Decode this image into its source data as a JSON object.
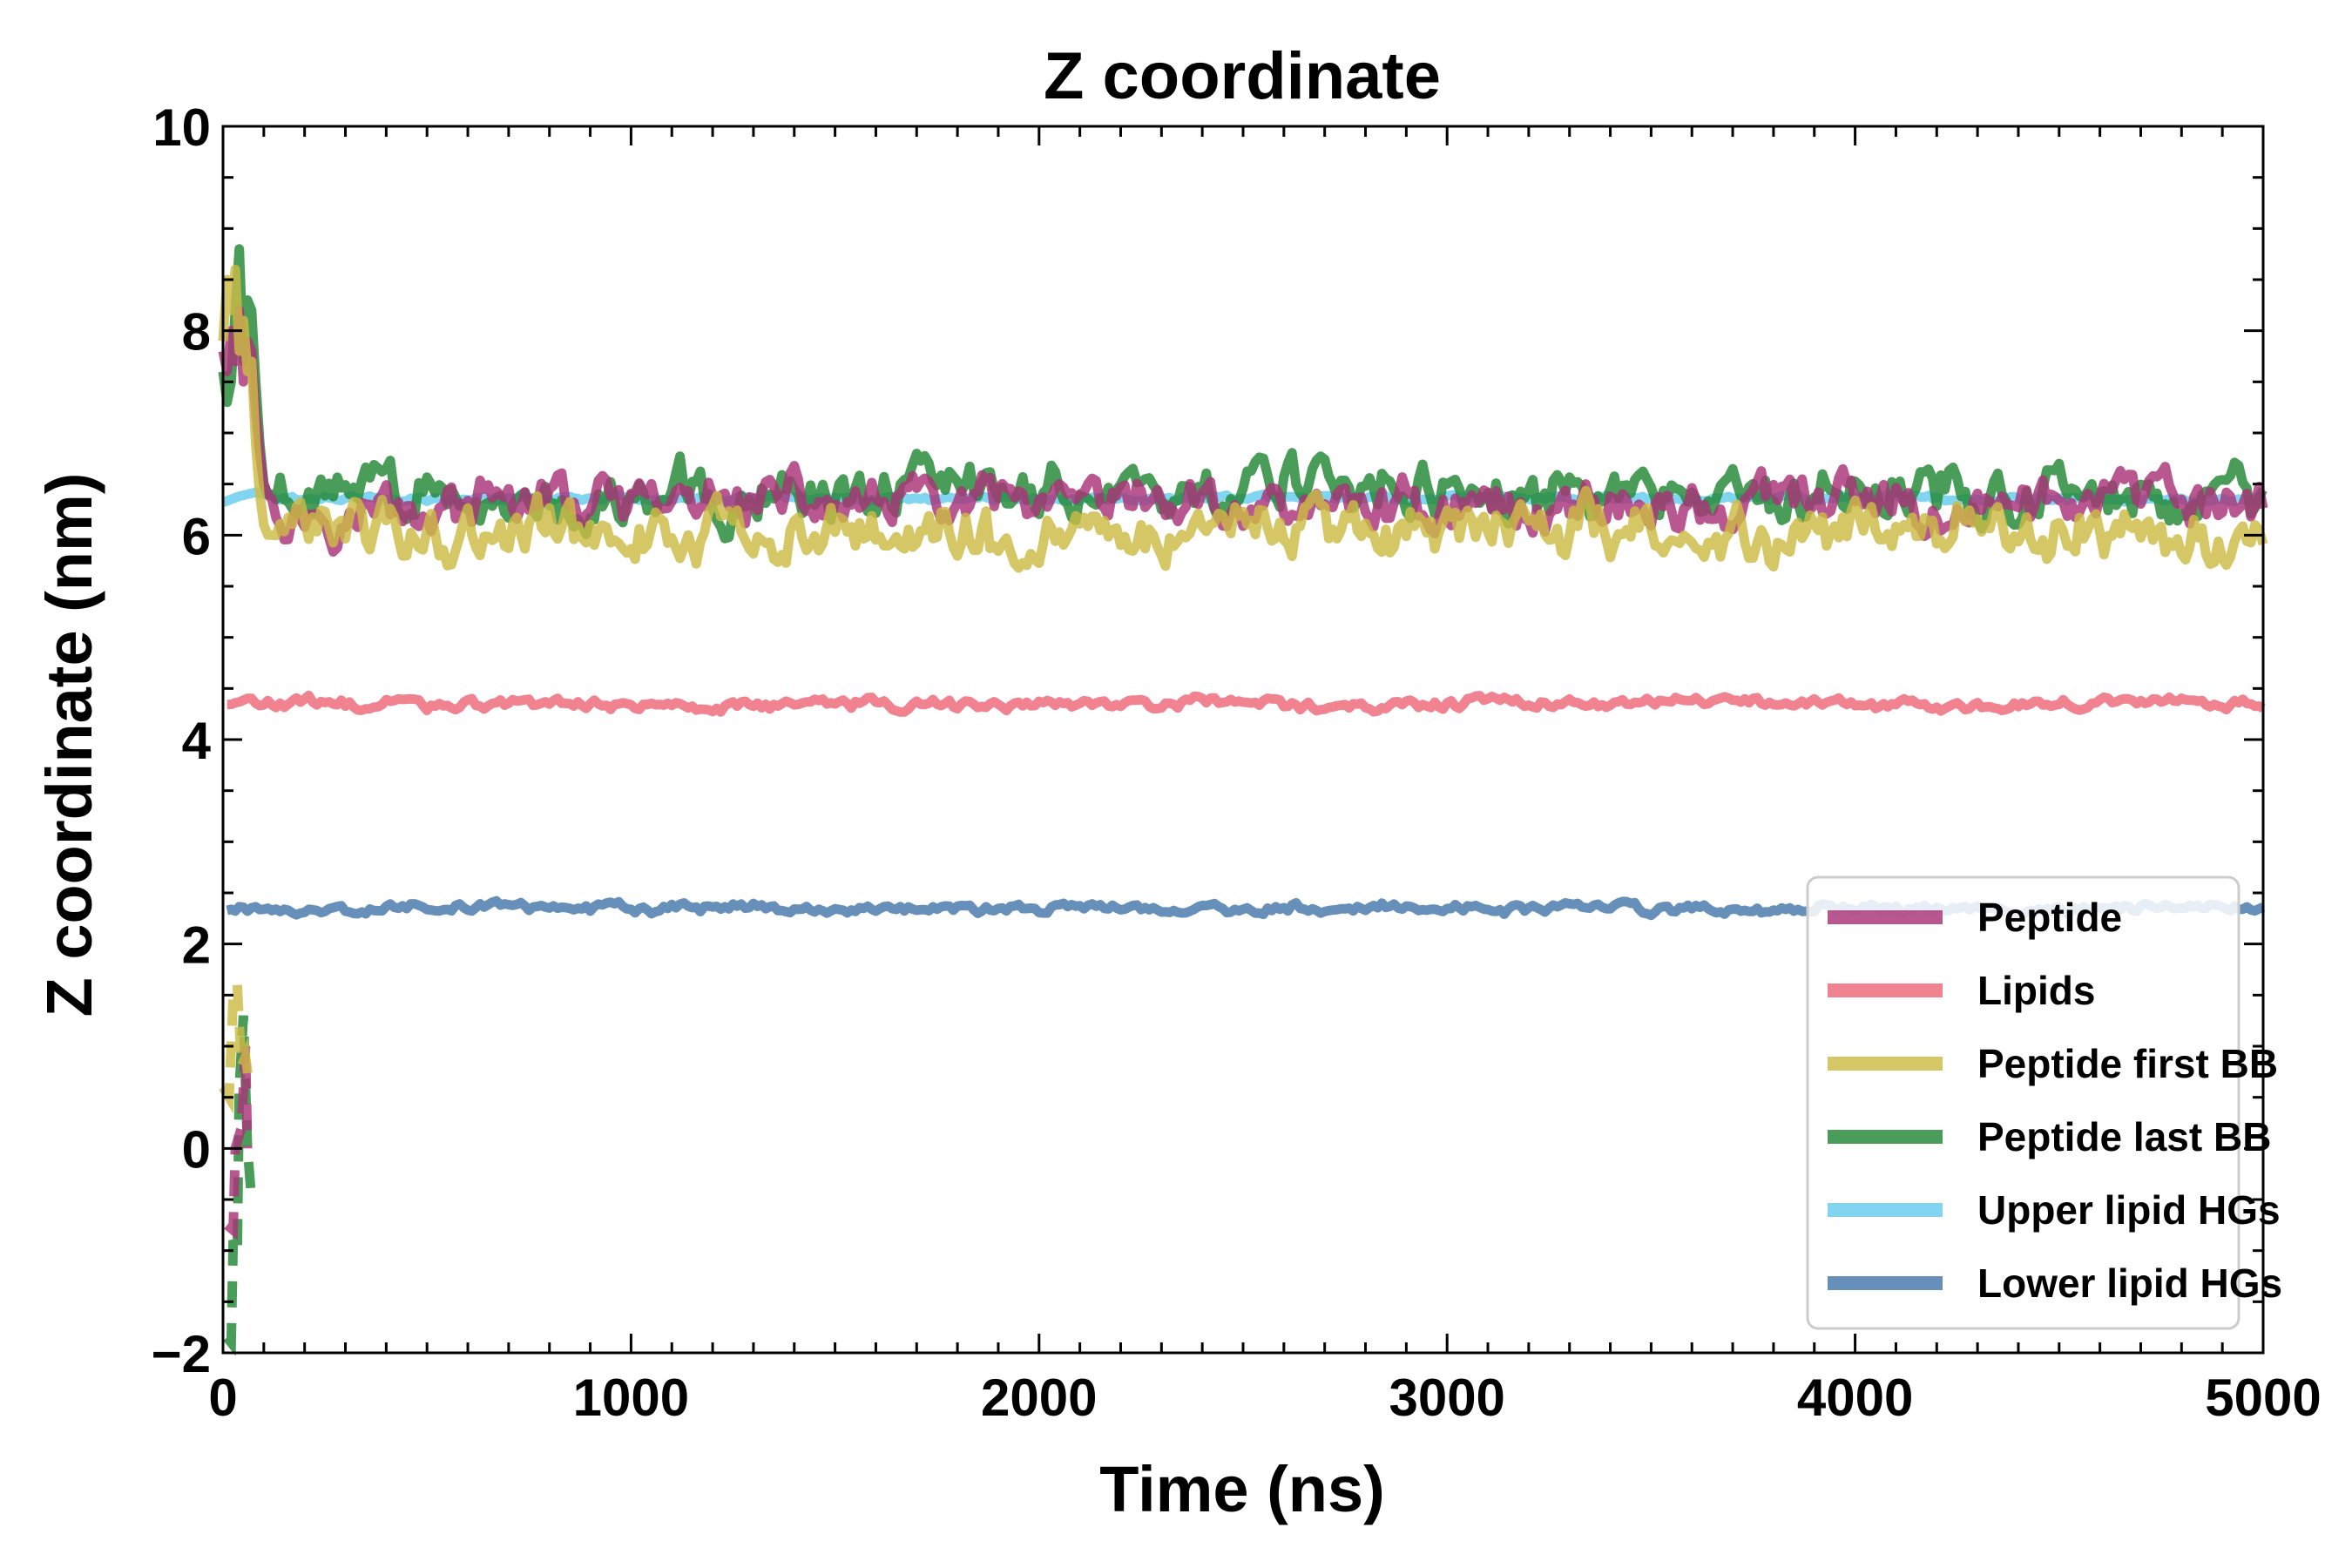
{
  "chart_data": {
    "type": "line",
    "title": "Z coordinate",
    "xlabel": "Time (ns)",
    "ylabel": "Z coordinate (nm)",
    "xlim": [
      0,
      5000
    ],
    "ylim": [
      -2,
      10
    ],
    "x_ticks": [
      "0",
      "1000",
      "2000",
      "3000",
      "4000",
      "5000"
    ],
    "y_ticks": [
      "−2",
      "0",
      "2",
      "4",
      "6",
      "8",
      "10"
    ],
    "grid": false,
    "legend_position": "bottom-right",
    "series": [
      {
        "name": "Peptide",
        "color": "#aa3377",
        "mean_after_entry": 6.3,
        "x": [
          0,
          10,
          20,
          30,
          40,
          50,
          60,
          70,
          80,
          90,
          100,
          110,
          120
        ],
        "y": [
          7.8,
          7.6,
          8.0,
          7.7,
          8.2,
          7.5,
          7.9,
          7.8,
          7.2,
          6.8,
          6.5,
          6.4,
          6.35
        ],
        "fragment_x": [
          10,
          25,
          30,
          45,
          55,
          60
        ],
        "fragment_y": [
          -0.75,
          -0.8,
          0.0,
          0.2,
          1.0,
          0.0
        ]
      },
      {
        "name": "Lipids",
        "color": "#ee6677",
        "mean_after_entry": 4.35
      },
      {
        "name": "Peptide first BB",
        "color": "#ccbb44",
        "mean_after_entry": 6.05,
        "x": [
          0,
          10,
          20,
          30,
          40,
          50,
          60,
          70,
          80,
          90,
          100,
          110,
          120
        ],
        "y": [
          7.9,
          8.5,
          8.2,
          8.6,
          7.8,
          8.1,
          7.6,
          7.7,
          6.9,
          6.4,
          6.1,
          6.0,
          6.0
        ],
        "fragment_x": [
          0,
          15,
          25,
          35,
          45,
          55,
          65
        ],
        "fragment_y": [
          0.6,
          0.5,
          1.5,
          1.6,
          0.8,
          0.9,
          0.6
        ]
      },
      {
        "name": "Peptide last BB",
        "color": "#228833",
        "mean_after_entry": 6.42,
        "x": [
          0,
          10,
          20,
          30,
          40,
          50,
          60,
          70,
          80,
          90,
          100,
          110,
          120
        ],
        "y": [
          7.6,
          7.3,
          7.5,
          8.2,
          8.8,
          7.7,
          8.3,
          8.2,
          7.5,
          6.9,
          6.5,
          6.4,
          6.4
        ],
        "fragment_x": [
          10,
          20,
          25,
          35,
          40,
          50,
          60,
          70
        ],
        "fragment_y": [
          -1.85,
          -1.9,
          -0.9,
          -1.0,
          0.6,
          1.3,
          0.0,
          -0.5
        ]
      },
      {
        "name": "Upper lipid HGs",
        "color": "#66ccee",
        "mean_after_entry": 6.36,
        "x": [
          0,
          40,
          80,
          120
        ],
        "y": [
          6.32,
          6.38,
          6.42,
          6.38
        ]
      },
      {
        "name": "Lower lipid HGs",
        "color": "#4477aa",
        "mean_after_entry": 2.35
      }
    ]
  }
}
